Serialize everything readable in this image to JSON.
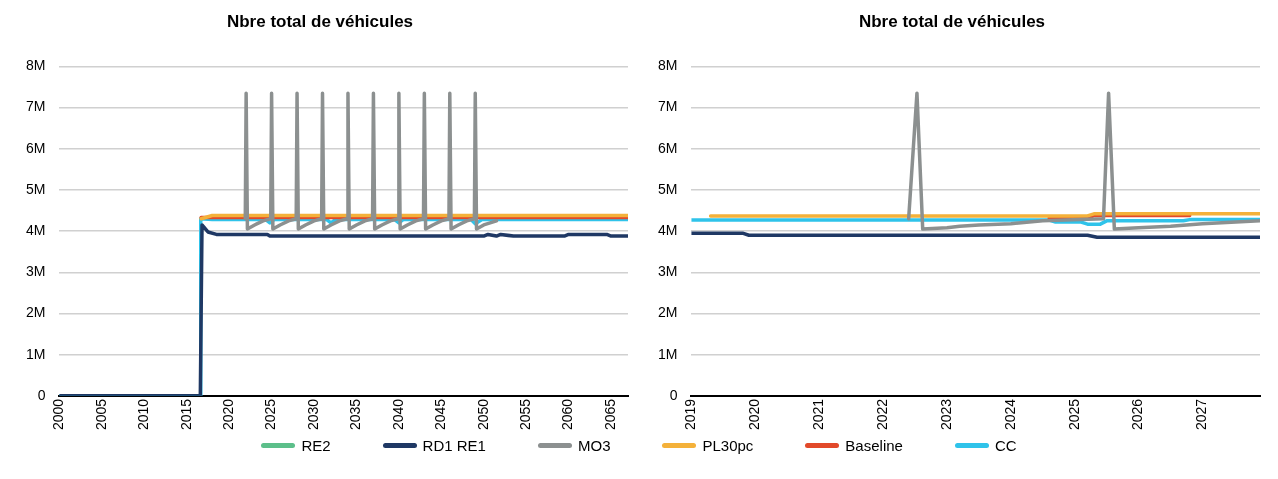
{
  "chart_data": [
    {
      "type": "line",
      "title": "Nbre total de véhicules",
      "xlim": [
        2000,
        2067
      ],
      "xticks": [
        2000,
        2005,
        2010,
        2015,
        2020,
        2025,
        2030,
        2035,
        2040,
        2045,
        2050,
        2055,
        2060,
        2065
      ],
      "ylim": [
        0,
        8000000
      ],
      "yticks": [
        0,
        {
          "value": 1000000,
          "label": "1M"
        },
        {
          "value": 2000000,
          "label": "2M"
        },
        {
          "value": 3000000,
          "label": "3M"
        },
        {
          "value": 4000000,
          "label": "4M"
        },
        {
          "value": 5000000,
          "label": "5M"
        },
        {
          "value": 6000000,
          "label": "6M"
        },
        {
          "value": 7000000,
          "label": "7M"
        },
        {
          "value": 8000000,
          "label": "8M"
        }
      ],
      "grid": "y",
      "legend": "bottom",
      "marker": "none",
      "series": [
        {
          "name": "RE2",
          "color": "#5cbf8a"
        },
        {
          "name": "RD1 RE1",
          "color": "#1f3864",
          "x": [
            2000,
            2016.6,
            2016.8,
            2017.5,
            2018.5,
            2024.5,
            2024.8,
            2050,
            2050.5,
            2051.5,
            2052,
            2053.5,
            2059.5,
            2060,
            2064.5,
            2065,
            2067
          ],
          "values": [
            0,
            0,
            4150000,
            3980000,
            3920000,
            3920000,
            3880000,
            3880000,
            3920000,
            3880000,
            3920000,
            3880000,
            3880000,
            3920000,
            3920000,
            3880000,
            3880000
          ]
        },
        {
          "name": "MO3",
          "color": "#8c9090",
          "x": [
            2021.9,
            2022,
            2022.15,
            2023,
            2024,
            2024.9,
            2025,
            2025.15,
            2026,
            2027,
            2027.9,
            2028,
            2028.15,
            2029,
            2030,
            2030.9,
            2031,
            2031.15,
            2032,
            2033,
            2033.9,
            2034,
            2034.15,
            2035,
            2036,
            2036.9,
            2037,
            2037.15,
            2038,
            2039,
            2039.9,
            2040,
            2040.15,
            2041,
            2042,
            2042.9,
            2043,
            2043.15,
            2044,
            2045,
            2045.9,
            2046,
            2046.15,
            2047,
            2048,
            2048.9,
            2049,
            2049.15,
            2050,
            2051.5
          ],
          "values": [
            4300000,
            7350000,
            4050000,
            4150000,
            4250000,
            4300000,
            7350000,
            4050000,
            4150000,
            4250000,
            4300000,
            7350000,
            4050000,
            4150000,
            4250000,
            4300000,
            7350000,
            4050000,
            4150000,
            4250000,
            4300000,
            7350000,
            4050000,
            4150000,
            4250000,
            4300000,
            7350000,
            4050000,
            4150000,
            4250000,
            4300000,
            7350000,
            4050000,
            4150000,
            4250000,
            4300000,
            7350000,
            4050000,
            4150000,
            4250000,
            4300000,
            7350000,
            4050000,
            4150000,
            4250000,
            4300000,
            7350000,
            4050000,
            4150000,
            4250000
          ]
        },
        {
          "name": "PL30pc",
          "color": "#f4b13a",
          "x": [
            2016.7,
            2018,
            2067
          ],
          "values": [
            4300000,
            4380000,
            4380000
          ]
        },
        {
          "name": "Baseline",
          "color": "#e2492a",
          "x": [
            2016.7,
            2067
          ],
          "values": [
            4330000,
            4330000
          ]
        },
        {
          "name": "CC",
          "color": "#2fc3ea",
          "x": [
            2000,
            2016.6,
            2016.65,
            2018,
            2024.3,
            2024.8,
            2025.3,
            2031.5,
            2032,
            2032.5,
            2039.5,
            2040,
            2040.5,
            2048.5,
            2049,
            2049.8,
            2067
          ],
          "values": [
            0,
            0,
            4300000,
            4280000,
            4280000,
            4200000,
            4280000,
            4280000,
            4200000,
            4280000,
            4280000,
            4200000,
            4280000,
            4280000,
            4180000,
            4280000,
            4280000
          ]
        }
      ]
    },
    {
      "type": "line",
      "title": "Nbre total de véhicules",
      "xlim": [
        2019,
        2027.9
      ],
      "xticks": [
        2019,
        2020,
        2021,
        2022,
        2023,
        2024,
        2025,
        2026,
        2027
      ],
      "ylim": [
        0,
        8000000
      ],
      "yticks": [
        0,
        {
          "value": 1000000,
          "label": "1M"
        },
        {
          "value": 2000000,
          "label": "2M"
        },
        {
          "value": 3000000,
          "label": "3M"
        },
        {
          "value": 4000000,
          "label": "4M"
        },
        {
          "value": 5000000,
          "label": "5M"
        },
        {
          "value": 6000000,
          "label": "6M"
        },
        {
          "value": 7000000,
          "label": "7M"
        },
        {
          "value": 8000000,
          "label": "8M"
        }
      ],
      "grid": "y",
      "marker": "none",
      "series": [
        {
          "color": "#1f3864",
          "x": [
            2019,
            2019.8,
            2019.9,
            2025.2,
            2025.35,
            2027.9
          ],
          "values": [
            3950000,
            3950000,
            3900000,
            3900000,
            3850000,
            3850000
          ]
        },
        {
          "color": "#8c9090",
          "x": [
            2022.4,
            2022.53,
            2022.62,
            2023,
            2023.2,
            2023.5,
            2024,
            2024.5,
            2025.45,
            2025.53,
            2025.62,
            2026,
            2026.5,
            2027,
            2027.9
          ],
          "values": [
            4300000,
            7350000,
            4050000,
            4080000,
            4120000,
            4150000,
            4180000,
            4250000,
            4300000,
            7350000,
            4050000,
            4080000,
            4120000,
            4180000,
            4250000
          ]
        },
        {
          "color": "#f4b13a",
          "x": [
            2019.3,
            2025.2,
            2025.3,
            2027.9
          ],
          "values": [
            4370000,
            4370000,
            4420000,
            4420000
          ]
        },
        {
          "color": "#e2492a",
          "x": [
            2024.6,
            2025.2,
            2025.3,
            2026.8
          ],
          "values": [
            4320000,
            4300000,
            4380000,
            4380000
          ]
        },
        {
          "color": "#2fc3ea",
          "x": [
            2019,
            2024.6,
            2024.7,
            2025.1,
            2025.2,
            2025.4,
            2025.5,
            2026.7,
            2026.8,
            2027.9
          ],
          "values": [
            4270000,
            4270000,
            4220000,
            4220000,
            4170000,
            4170000,
            4250000,
            4250000,
            4280000,
            4280000
          ]
        }
      ]
    }
  ]
}
